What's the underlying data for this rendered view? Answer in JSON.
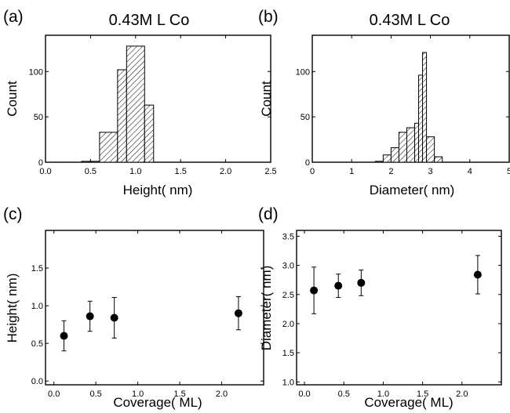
{
  "chart_data": [
    {
      "panel": "(a)",
      "type": "bar",
      "title": "0.43M L Co",
      "xlabel": "Height( nm)",
      "ylabel": "Count",
      "xlim": [
        0,
        2.5
      ],
      "ylim": [
        0,
        140
      ],
      "xticks": [
        0.0,
        0.5,
        1.0,
        1.5,
        2.0,
        2.5
      ],
      "xtick_labels": [
        "0.0",
        "0.5",
        "1.0",
        "1.5",
        "2.0",
        "2.5"
      ],
      "yticks": [
        0,
        50,
        100
      ],
      "ytick_labels": [
        "0",
        "50",
        "100"
      ],
      "bins": [
        {
          "x0": 0.4,
          "x1": 0.5,
          "count": 1
        },
        {
          "x0": 0.5,
          "x1": 0.6,
          "count": 1
        },
        {
          "x0": 0.6,
          "x1": 0.8,
          "count": 33
        },
        {
          "x0": 0.8,
          "x1": 0.9,
          "count": 102
        },
        {
          "x0": 0.9,
          "x1": 1.1,
          "count": 128
        },
        {
          "x0": 1.1,
          "x1": 1.2,
          "count": 63
        }
      ]
    },
    {
      "panel": "(b)",
      "type": "bar",
      "title": "0.43M L Co",
      "xlabel": "Diameter( nm)",
      "ylabel": "Count",
      "xlim": [
        0,
        5
      ],
      "ylim": [
        0,
        140
      ],
      "xticks": [
        0,
        1,
        2,
        3,
        4,
        5
      ],
      "xtick_labels": [
        "0",
        "1",
        "2",
        "3",
        "4",
        "5"
      ],
      "yticks": [
        0,
        50,
        100
      ],
      "ytick_labels": [
        "0",
        "50",
        "100"
      ],
      "bins": [
        {
          "x0": 1.6,
          "x1": 1.8,
          "count": 1
        },
        {
          "x0": 1.8,
          "x1": 2.0,
          "count": 8
        },
        {
          "x0": 2.0,
          "x1": 2.2,
          "count": 16
        },
        {
          "x0": 2.2,
          "x1": 2.4,
          "count": 33
        },
        {
          "x0": 2.4,
          "x1": 2.6,
          "count": 38
        },
        {
          "x0": 2.6,
          "x1": 2.7,
          "count": 43
        },
        {
          "x0": 2.7,
          "x1": 2.8,
          "count": 96
        },
        {
          "x0": 2.8,
          "x1": 2.9,
          "count": 121
        },
        {
          "x0": 2.9,
          "x1": 3.1,
          "count": 28
        },
        {
          "x0": 3.1,
          "x1": 3.3,
          "count": 6
        }
      ]
    },
    {
      "panel": "(c)",
      "type": "scatter",
      "title": "",
      "xlabel": "Coverage( ML)",
      "ylabel": "Height( nm)",
      "xlim": [
        -0.1,
        2.5
      ],
      "ylim": [
        -0.05,
        2.0
      ],
      "xticks": [
        0.0,
        0.5,
        1.0,
        1.5,
        2.0
      ],
      "xtick_labels": [
        "0.0",
        "0.5",
        "1.0",
        "1.5",
        "2.0"
      ],
      "yticks": [
        0.0,
        0.5,
        1.0,
        1.5
      ],
      "ytick_labels": [
        "0.0",
        "0.5",
        "1.0",
        "1.5"
      ],
      "points": [
        {
          "x": 0.12,
          "y": 0.6,
          "yerr": 0.2
        },
        {
          "x": 0.43,
          "y": 0.86,
          "yerr": 0.2
        },
        {
          "x": 0.72,
          "y": 0.84,
          "yerr": 0.27
        },
        {
          "x": 2.2,
          "y": 0.9,
          "yerr": 0.22
        }
      ]
    },
    {
      "panel": "(d)",
      "type": "scatter",
      "title": "",
      "xlabel": "Coverage( ML)",
      "ylabel": "Diameter( nm)",
      "xlim": [
        -0.1,
        2.5
      ],
      "ylim": [
        0.95,
        3.6
      ],
      "xticks": [
        0.0,
        0.5,
        1.0,
        1.5,
        2.0
      ],
      "xtick_labels": [
        "0.0",
        "0.5",
        "1.0",
        "1.5",
        "2.0"
      ],
      "yticks": [
        1.0,
        1.5,
        2.0,
        2.5,
        3.0,
        3.5
      ],
      "ytick_labels": [
        "1.0",
        "1.5",
        "2.0",
        "2.5",
        "3.0",
        "3.5"
      ],
      "points": [
        {
          "x": 0.12,
          "y": 2.57,
          "yerr": 0.4
        },
        {
          "x": 0.43,
          "y": 2.65,
          "yerr": 0.2
        },
        {
          "x": 0.72,
          "y": 2.7,
          "yerr": 0.22
        },
        {
          "x": 2.2,
          "y": 2.84,
          "yerr": 0.33
        }
      ]
    }
  ]
}
